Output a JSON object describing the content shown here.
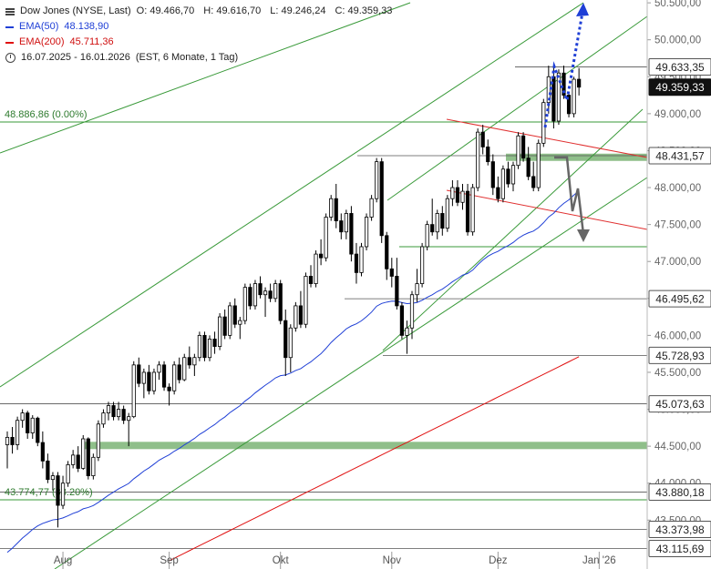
{
  "legend": {
    "instrument": "Dow Jones (NYSE, Last)",
    "open": "O: 49.466,70",
    "high": "H: 49.616,70",
    "low": "L: 49.246,24",
    "close": "C: 49.359,33",
    "ema50_label": "EMA(50)",
    "ema50_value": "48.138,90",
    "ema200_label": "EMA(200)",
    "ema200_value": "45.711,36",
    "period": "16.07.2025 - 16.01.2026",
    "settings": "(EST, 6 Monate, 1 Tag)"
  },
  "colors": {
    "up_candle": "#ffffff",
    "down_candle": "#000000",
    "ema50": "#1f3fd6",
    "ema200": "#e01010",
    "support_band": "#8fbf8a",
    "trend_green": "#3a9a3a",
    "trend_red": "#e03030",
    "forecast_blue": "#1f3fd6",
    "forecast_gray": "#666666",
    "level_line": "#555555"
  },
  "chart_data": {
    "type": "candlestick",
    "y_axis": {
      "min": 43000,
      "max": 50600,
      "ticks": [
        "43.500,00",
        "44.000,00",
        "44.500,00",
        "45.000,00",
        "45.500,00",
        "46.000,00",
        "46.500,00",
        "47.000,00",
        "47.500,00",
        "48.000,00",
        "48.500,00",
        "49.000,00",
        "49.500,00",
        "50.000,00",
        "50.500,00"
      ],
      "tick_values": [
        43500,
        44000,
        44500,
        45000,
        45500,
        46000,
        46500,
        47000,
        47500,
        48000,
        48500,
        49000,
        49500,
        50000,
        50500
      ]
    },
    "x_axis": {
      "months": [
        "Aug",
        "Sep",
        "Okt",
        "Nov",
        "Dez",
        "Jan '26"
      ],
      "month_index": [
        11,
        32,
        54,
        76,
        97,
        117
      ]
    },
    "price_levels": [
      {
        "value": 49633.35,
        "label": "49.633,35",
        "highlight": false
      },
      {
        "value": 49359.33,
        "label": "49.359,33",
        "highlight": true
      },
      {
        "value": 48431.57,
        "label": "48.431,57",
        "highlight": false
      },
      {
        "value": 46495.62,
        "label": "46.495,62",
        "highlight": false
      },
      {
        "value": 45728.93,
        "label": "45.728,93",
        "highlight": false
      },
      {
        "value": 45073.63,
        "label": "45.073,63",
        "highlight": false
      },
      {
        "value": 43880.18,
        "label": "43.880,18",
        "highlight": false
      },
      {
        "value": 43373.98,
        "label": "43.373,98",
        "highlight": false
      },
      {
        "value": 43115.69,
        "label": "43.115,69",
        "highlight": false
      }
    ],
    "fib_levels": [
      {
        "value": 48886.86,
        "label": "48.886,86 (0.00%)"
      },
      {
        "value": 43774.77,
        "label": "43.774,77 (38.20%)"
      }
    ],
    "support_zones": [
      {
        "value": 44510
      },
      {
        "value": 48410
      }
    ],
    "candles": [
      [
        44520,
        44700,
        44200,
        44620
      ],
      [
        44620,
        44760,
        44400,
        44520
      ],
      [
        44520,
        44900,
        44450,
        44850
      ],
      [
        44850,
        45000,
        44750,
        44950
      ],
      [
        44950,
        44980,
        44600,
        44680
      ],
      [
        44680,
        44920,
        44600,
        44880
      ],
      [
        44880,
        44900,
        44500,
        44550
      ],
      [
        44550,
        44700,
        44200,
        44300
      ],
      [
        44300,
        44400,
        44000,
        44050
      ],
      [
        44050,
        44150,
        43900,
        44100
      ],
      [
        44100,
        44150,
        43400,
        43700
      ],
      [
        43700,
        44100,
        43650,
        44000
      ],
      [
        44000,
        44300,
        43950,
        44250
      ],
      [
        44250,
        44450,
        44200,
        44380
      ],
      [
        44380,
        44500,
        44150,
        44200
      ],
      [
        44200,
        44650,
        44180,
        44600
      ],
      [
        44600,
        44620,
        44050,
        44100
      ],
      [
        44100,
        44400,
        44050,
        44350
      ],
      [
        44350,
        44850,
        44300,
        44800
      ],
      [
        44800,
        45000,
        44750,
        44950
      ],
      [
        44950,
        45100,
        44850,
        45050
      ],
      [
        45050,
        45100,
        44850,
        44900
      ],
      [
        44900,
        45100,
        44850,
        45000
      ],
      [
        45000,
        45050,
        44800,
        44850
      ],
      [
        44850,
        44950,
        44500,
        44900
      ],
      [
        44900,
        45650,
        44880,
        45600
      ],
      [
        45600,
        45700,
        45300,
        45350
      ],
      [
        45350,
        45550,
        45150,
        45500
      ],
      [
        45500,
        45600,
        45200,
        45250
      ],
      [
        45250,
        45550,
        45200,
        45500
      ],
      [
        45500,
        45650,
        45400,
        45600
      ],
      [
        45600,
        45650,
        45250,
        45300
      ],
      [
        45300,
        45350,
        45050,
        45250
      ],
      [
        45250,
        45650,
        45200,
        45600
      ],
      [
        45600,
        45700,
        45350,
        45400
      ],
      [
        45400,
        45750,
        45380,
        45700
      ],
      [
        45700,
        45850,
        45550,
        45600
      ],
      [
        45600,
        45750,
        45450,
        45700
      ],
      [
        45700,
        46050,
        45650,
        46000
      ],
      [
        46000,
        46050,
        45650,
        45700
      ],
      [
        45700,
        46000,
        45650,
        45950
      ],
      [
        45950,
        46050,
        45750,
        45850
      ],
      [
        45850,
        46300,
        45800,
        46250
      ],
      [
        46250,
        46350,
        45950,
        46000
      ],
      [
        46000,
        46450,
        45950,
        46400
      ],
      [
        46400,
        46500,
        46100,
        46150
      ],
      [
        46150,
        46250,
        45950,
        46200
      ],
      [
        46200,
        46700,
        46150,
        46650
      ],
      [
        46650,
        46700,
        46350,
        46400
      ],
      [
        46400,
        46750,
        46350,
        46700
      ],
      [
        46700,
        46800,
        46500,
        46550
      ],
      [
        46550,
        46650,
        46250,
        46600
      ],
      [
        46600,
        46700,
        46450,
        46500
      ],
      [
        46500,
        46750,
        46450,
        46700
      ],
      [
        46700,
        46750,
        46150,
        46200
      ],
      [
        46200,
        46350,
        45450,
        45700
      ],
      [
        45700,
        46150,
        45500,
        46100
      ],
      [
        46100,
        46450,
        46050,
        46400
      ],
      [
        46400,
        46600,
        46100,
        46150
      ],
      [
        46150,
        46850,
        46100,
        46800
      ],
      [
        46800,
        46950,
        46650,
        46700
      ],
      [
        46700,
        47150,
        46650,
        47100
      ],
      [
        47100,
        47300,
        46950,
        47050
      ],
      [
        47050,
        47650,
        47000,
        47600
      ],
      [
        47600,
        47900,
        47550,
        47850
      ],
      [
        47850,
        48050,
        47450,
        47550
      ],
      [
        47550,
        47650,
        47300,
        47400
      ],
      [
        47400,
        47700,
        47300,
        47650
      ],
      [
        47650,
        47750,
        47000,
        47100
      ],
      [
        47100,
        47250,
        46700,
        46850
      ],
      [
        46850,
        47250,
        46800,
        47200
      ],
      [
        47200,
        47650,
        47150,
        47600
      ],
      [
        47600,
        47900,
        47550,
        47850
      ],
      [
        47850,
        48400,
        47800,
        48350
      ],
      [
        48350,
        48400,
        47250,
        47350
      ],
      [
        47350,
        47400,
        46750,
        46900
      ],
      [
        46900,
        47050,
        46650,
        46800
      ],
      [
        46800,
        47050,
        46350,
        46400
      ],
      [
        46400,
        46450,
        45950,
        46000
      ],
      [
        46000,
        46200,
        45750,
        46100
      ],
      [
        46100,
        46600,
        45950,
        46550
      ],
      [
        46550,
        46900,
        46450,
        46700
      ],
      [
        46700,
        47250,
        46650,
        47200
      ],
      [
        47200,
        47550,
        47150,
        47500
      ],
      [
        47500,
        47850,
        47350,
        47400
      ],
      [
        47400,
        47700,
        47300,
        47650
      ],
      [
        47650,
        47750,
        47350,
        47450
      ],
      [
        47450,
        47900,
        47400,
        47850
      ],
      [
        47850,
        48100,
        47750,
        48000
      ],
      [
        48000,
        48100,
        47750,
        47800
      ],
      [
        47800,
        48050,
        47700,
        47950
      ],
      [
        47950,
        48050,
        47350,
        47400
      ],
      [
        47400,
        48050,
        47350,
        48000
      ],
      [
        48000,
        48800,
        47950,
        48750
      ],
      [
        48750,
        48850,
        48450,
        48550
      ],
      [
        48550,
        48650,
        48300,
        48350
      ],
      [
        48350,
        48450,
        47900,
        48000
      ],
      [
        48000,
        48150,
        47800,
        47850
      ],
      [
        47850,
        48300,
        47800,
        48250
      ],
      [
        48250,
        48350,
        48000,
        48050
      ],
      [
        48050,
        48350,
        47950,
        48300
      ],
      [
        48300,
        48750,
        48250,
        48700
      ],
      [
        48700,
        48750,
        48350,
        48400
      ],
      [
        48400,
        48550,
        48100,
        48150
      ],
      [
        48150,
        48350,
        47950,
        48000
      ],
      [
        48000,
        48650,
        47950,
        48600
      ],
      [
        48600,
        49200,
        48550,
        49150
      ],
      [
        49150,
        49650,
        49000,
        49500
      ],
      [
        49500,
        49650,
        48800,
        48900
      ],
      [
        48900,
        49600,
        48850,
        49550
      ],
      [
        49550,
        49650,
        49200,
        49250
      ],
      [
        49250,
        49300,
        48950,
        49000
      ],
      [
        49000,
        49500,
        48950,
        49466
      ],
      [
        49466,
        49617,
        49246,
        49359
      ]
    ]
  }
}
